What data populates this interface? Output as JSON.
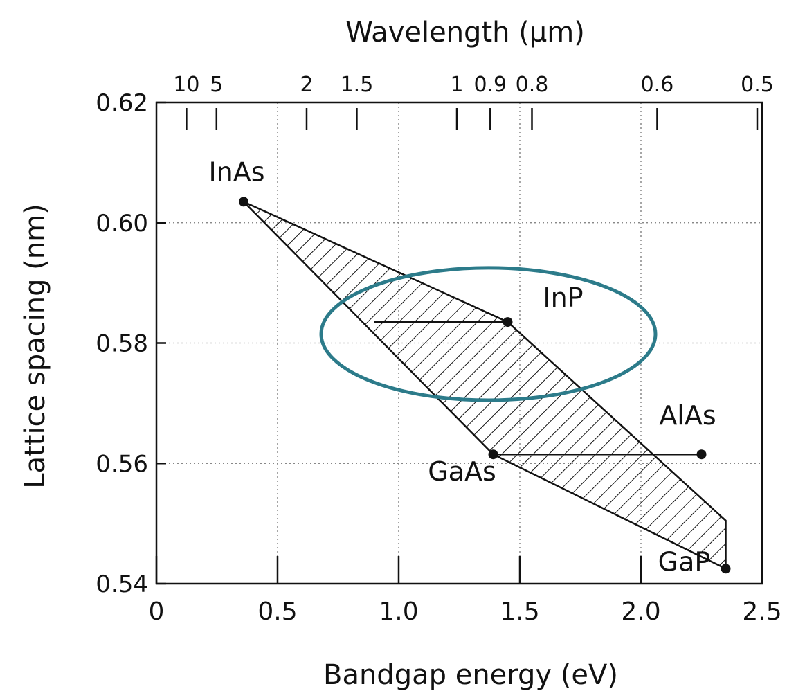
{
  "chart_data": {
    "type": "scatter",
    "xlabel": "Bandgap energy (eV)",
    "ylabel": "Lattice spacing (nm)",
    "top_axis_label": "Wavelength (μm)",
    "xlim": [
      0,
      2.5
    ],
    "ylim": [
      0.54,
      0.62
    ],
    "x_ticks": [
      "0",
      "0.5",
      "1.0",
      "1.5",
      "2.0",
      "2.5"
    ],
    "y_ticks": [
      "0.54",
      "0.56",
      "0.58",
      "0.60",
      "0.62"
    ],
    "top_ticks": [
      {
        "label": "10",
        "energy": 0.124
      },
      {
        "label": "5",
        "energy": 0.248
      },
      {
        "label": "2",
        "energy": 0.62
      },
      {
        "label": "1.5",
        "energy": 0.827
      },
      {
        "label": "1",
        "energy": 1.24
      },
      {
        "label": "0.9",
        "energy": 1.378
      },
      {
        "label": "0.8",
        "energy": 1.55
      },
      {
        "label": "0.6",
        "energy": 2.067
      },
      {
        "label": "0.5",
        "energy": 2.48
      }
    ],
    "grid": true,
    "points": [
      {
        "name": "InAs",
        "x": 0.36,
        "y": 0.6035
      },
      {
        "name": "InP",
        "x": 1.45,
        "y": 0.5835
      },
      {
        "name": "GaAs",
        "x": 1.39,
        "y": 0.5615
      },
      {
        "name": "AlAs",
        "x": 2.25,
        "y": 0.5615
      },
      {
        "name": "GaP",
        "x": 2.35,
        "y": 0.5425
      }
    ],
    "alloy_region": [
      [
        0.36,
        0.6035
      ],
      [
        1.45,
        0.5835
      ],
      [
        2.35,
        0.5505
      ],
      [
        2.35,
        0.5425
      ],
      [
        1.39,
        0.5615
      ]
    ],
    "tie_lines": [
      [
        [
          0.9,
          0.5835
        ],
        [
          1.45,
          0.5835
        ]
      ],
      [
        [
          1.39,
          0.5615
        ],
        [
          2.25,
          0.5615
        ]
      ]
    ],
    "highlight_ellipse": {
      "cx": 1.37,
      "cy": 0.5815,
      "rx": 0.69,
      "ry": 0.011,
      "color": "#2c7b8a"
    }
  }
}
